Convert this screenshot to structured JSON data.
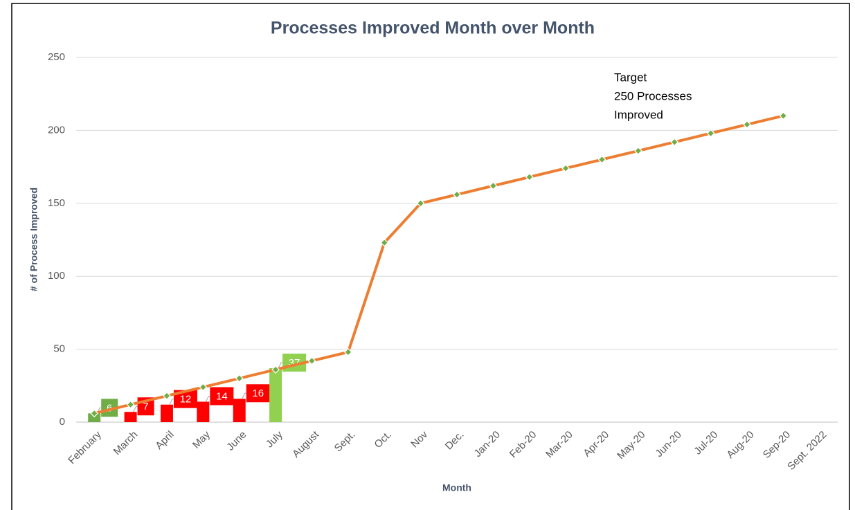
{
  "chart_data": {
    "type": "bar_line",
    "title": "Processes Improved Month over Month",
    "x_label": "Month",
    "y_label": "# of Process Improved",
    "annotation": [
      "Target",
      "250 Processes",
      "Improved"
    ],
    "categories": [
      "February",
      "March",
      "April",
      "May",
      "June",
      "July",
      "August",
      "Sept.",
      "Oct.",
      "Nov",
      "Dec.",
      "Jan-20",
      "Feb-20",
      "Mar-20",
      "Apr-20",
      "May-20",
      "Jun-20",
      "Jul-20",
      "Aug-20",
      "Sep-20",
      "Sept. 2022"
    ],
    "series": [
      {
        "type": "bar",
        "colors": [
          "#70ad47",
          "#ff0000",
          "#ff0000",
          "#ff0000",
          "#ff0000",
          "#92d050",
          null,
          null,
          null,
          null,
          null,
          null,
          null,
          null,
          null,
          null,
          null,
          null,
          null,
          null,
          null
        ],
        "values": [
          6,
          7,
          12,
          14,
          16,
          37,
          null,
          null,
          null,
          null,
          null,
          null,
          null,
          null,
          null,
          null,
          null,
          null,
          null,
          null,
          null
        ]
      },
      {
        "type": "line",
        "color": "#ed7d31",
        "marker_color": "#70ad47",
        "values": [
          6,
          12,
          18,
          24,
          30,
          36,
          42,
          48,
          123,
          150,
          156,
          162,
          168,
          174,
          180,
          186,
          192,
          198,
          204,
          210,
          null
        ]
      }
    ],
    "ylim": [
      0,
      250
    ],
    "yticks": [
      0,
      50,
      100,
      150,
      200,
      250
    ],
    "grid": true
  }
}
